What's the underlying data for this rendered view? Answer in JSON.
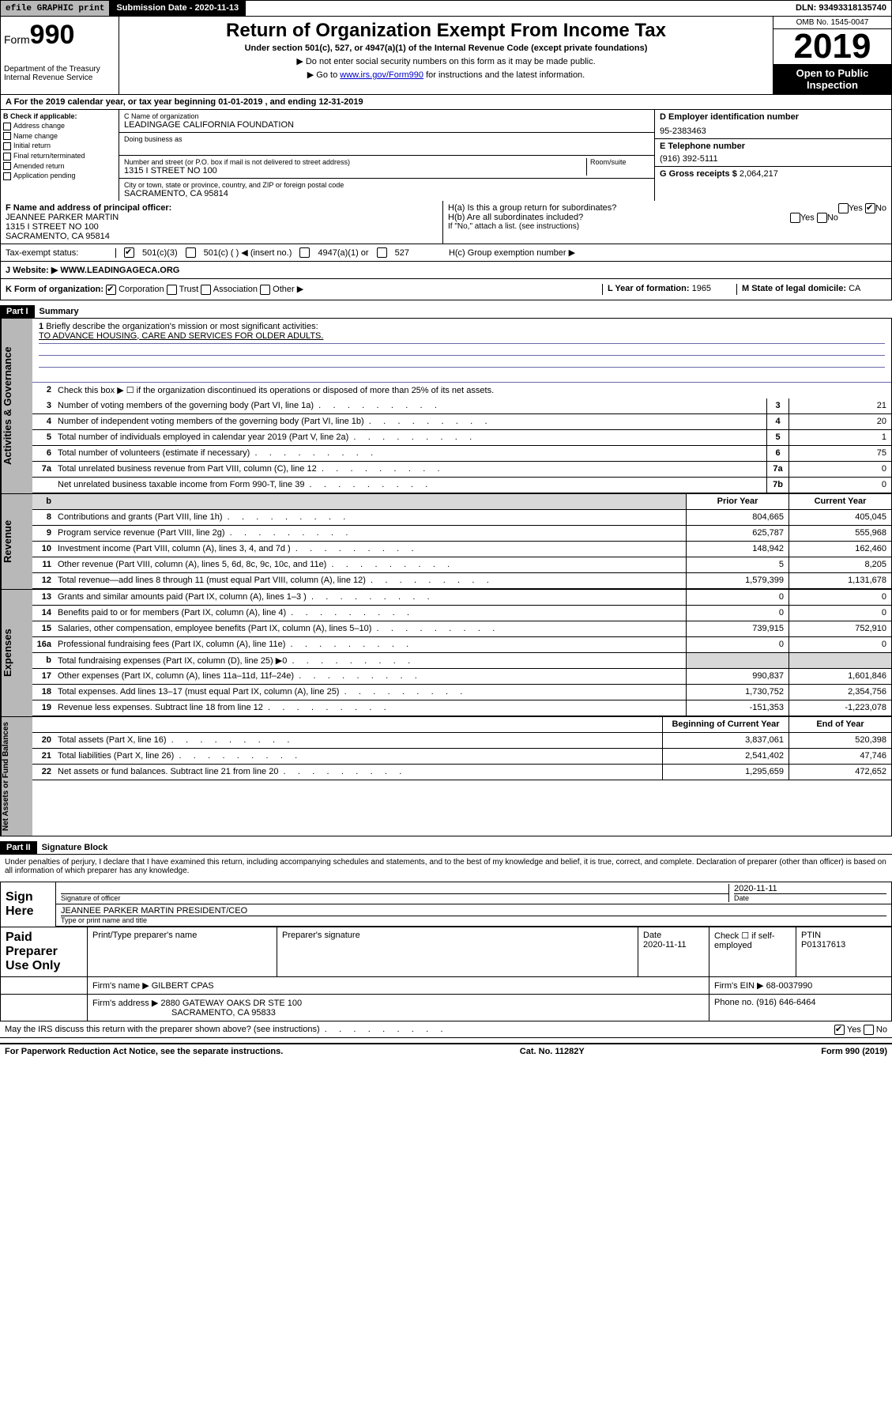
{
  "topbar": {
    "efile": "efile GRAPHIC print",
    "submission": "Submission Date - 2020-11-13",
    "dln": "DLN: 93493318135740"
  },
  "header": {
    "form": "Form",
    "formnum": "990",
    "title": "Return of Organization Exempt From Income Tax",
    "sub": "Under section 501(c), 527, or 4947(a)(1) of the Internal Revenue Code (except private foundations)",
    "note1": "▶ Do not enter social security numbers on this form as it may be made public.",
    "note2_pre": "▶ Go to ",
    "note2_link": "www.irs.gov/Form990",
    "note2_post": " for instructions and the latest information.",
    "dept": "Department of the Treasury\nInternal Revenue Service",
    "omb": "OMB No. 1545-0047",
    "year": "2019",
    "open": "Open to Public Inspection"
  },
  "period": "A For the 2019 calendar year, or tax year beginning 01-01-2019    , and ending 12-31-2019",
  "boxB": {
    "title": "B Check if applicable:",
    "items": [
      "Address change",
      "Name change",
      "Initial return",
      "Final return/terminated",
      "Amended return",
      "Application pending"
    ]
  },
  "boxC": {
    "name_lbl": "C Name of organization",
    "name": "LEADINGAGE CALIFORNIA FOUNDATION",
    "dba_lbl": "Doing business as",
    "addr_lbl": "Number and street (or P.O. box if mail is not delivered to street address)",
    "room_lbl": "Room/suite",
    "addr": "1315 I STREET NO 100",
    "city_lbl": "City or town, state or province, country, and ZIP or foreign postal code",
    "city": "SACRAMENTO, CA  95814"
  },
  "boxD": {
    "lbl": "D Employer identification number",
    "val": "95-2383463"
  },
  "boxE": {
    "lbl": "E Telephone number",
    "val": "(916) 392-5111"
  },
  "boxG": {
    "lbl": "G Gross receipts $",
    "val": "2,064,217"
  },
  "boxF": {
    "lbl": "F  Name and address of principal officer:",
    "name": "JEANNEE PARKER MARTIN",
    "addr1": "1315 I STREET NO 100",
    "addr2": "SACRAMENTO, CA  95814"
  },
  "boxH": {
    "ha": "H(a)  Is this a group return for subordinates?",
    "hb": "H(b)  Are all subordinates included?",
    "hb_note": "If \"No,\" attach a list. (see instructions)",
    "hc": "H(c)  Group exemption number ▶"
  },
  "tax_status": "Tax-exempt status:",
  "tax_opts": [
    "501(c)(3)",
    "501(c) (  ) ◀ (insert no.)",
    "4947(a)(1) or",
    "527"
  ],
  "websiteJ": {
    "lbl": "J   Website: ▶",
    "val": "WWW.LEADINGAGECA.ORG"
  },
  "boxK": {
    "lbl": "K Form of organization:",
    "opts": [
      "Corporation",
      "Trust",
      "Association",
      "Other ▶"
    ]
  },
  "boxL": {
    "lbl": "L Year of formation:",
    "val": "1965"
  },
  "boxM": {
    "lbl": "M State of legal domicile:",
    "val": "CA"
  },
  "part1": {
    "bar": "Part I",
    "title": "Summary"
  },
  "summary": {
    "q1": "Briefly describe the organization's mission or most significant activities:",
    "mission": "TO ADVANCE HOUSING, CARE AND SERVICES FOR OLDER ADULTS.",
    "q2": "Check this box ▶ ☐  if the organization discontinued its operations or disposed of more than 25% of its net assets.",
    "rows_gov": [
      {
        "n": "3",
        "d": "Number of voting members of the governing body (Part VI, line 1a)",
        "b": "3",
        "v": "21"
      },
      {
        "n": "4",
        "d": "Number of independent voting members of the governing body (Part VI, line 1b)",
        "b": "4",
        "v": "20"
      },
      {
        "n": "5",
        "d": "Total number of individuals employed in calendar year 2019 (Part V, line 2a)",
        "b": "5",
        "v": "1"
      },
      {
        "n": "6",
        "d": "Total number of volunteers (estimate if necessary)",
        "b": "6",
        "v": "75"
      },
      {
        "n": "7a",
        "d": "Total unrelated business revenue from Part VIII, column (C), line 12",
        "b": "7a",
        "v": "0"
      },
      {
        "n": "",
        "d": "Net unrelated business taxable income from Form 990-T, line 39",
        "b": "7b",
        "v": "0"
      }
    ],
    "hdr_prior": "Prior Year",
    "hdr_curr": "Current Year",
    "rows_rev": [
      {
        "n": "8",
        "d": "Contributions and grants (Part VIII, line 1h)",
        "p": "804,665",
        "c": "405,045"
      },
      {
        "n": "9",
        "d": "Program service revenue (Part VIII, line 2g)",
        "p": "625,787",
        "c": "555,968"
      },
      {
        "n": "10",
        "d": "Investment income (Part VIII, column (A), lines 3, 4, and 7d )",
        "p": "148,942",
        "c": "162,460"
      },
      {
        "n": "11",
        "d": "Other revenue (Part VIII, column (A), lines 5, 6d, 8c, 9c, 10c, and 11e)",
        "p": "5",
        "c": "8,205"
      },
      {
        "n": "12",
        "d": "Total revenue—add lines 8 through 11 (must equal Part VIII, column (A), line 12)",
        "p": "1,579,399",
        "c": "1,131,678"
      }
    ],
    "rows_exp": [
      {
        "n": "13",
        "d": "Grants and similar amounts paid (Part IX, column (A), lines 1–3 )",
        "p": "0",
        "c": "0"
      },
      {
        "n": "14",
        "d": "Benefits paid to or for members (Part IX, column (A), line 4)",
        "p": "0",
        "c": "0"
      },
      {
        "n": "15",
        "d": "Salaries, other compensation, employee benefits (Part IX, column (A), lines 5–10)",
        "p": "739,915",
        "c": "752,910"
      },
      {
        "n": "16a",
        "d": "Professional fundraising fees (Part IX, column (A), line 11e)",
        "p": "0",
        "c": "0"
      },
      {
        "n": "b",
        "d": "Total fundraising expenses (Part IX, column (D), line 25) ▶0",
        "p": "",
        "c": "",
        "grey": true
      },
      {
        "n": "17",
        "d": "Other expenses (Part IX, column (A), lines 11a–11d, 11f–24e)",
        "p": "990,837",
        "c": "1,601,846"
      },
      {
        "n": "18",
        "d": "Total expenses. Add lines 13–17 (must equal Part IX, column (A), line 25)",
        "p": "1,730,752",
        "c": "2,354,756"
      },
      {
        "n": "19",
        "d": "Revenue less expenses. Subtract line 18 from line 12",
        "p": "-151,353",
        "c": "-1,223,078"
      }
    ],
    "hdr_beg": "Beginning of Current Year",
    "hdr_end": "End of Year",
    "rows_net": [
      {
        "n": "20",
        "d": "Total assets (Part X, line 16)",
        "p": "3,837,061",
        "c": "520,398"
      },
      {
        "n": "21",
        "d": "Total liabilities (Part X, line 26)",
        "p": "2,541,402",
        "c": "47,746"
      },
      {
        "n": "22",
        "d": "Net assets or fund balances. Subtract line 21 from line 20",
        "p": "1,295,659",
        "c": "472,652"
      }
    ]
  },
  "part2": {
    "bar": "Part II",
    "title": "Signature Block"
  },
  "sig": {
    "decl": "Under penalties of perjury, I declare that I have examined this return, including accompanying schedules and statements, and to the best of my knowledge and belief, it is true, correct, and complete. Declaration of preparer (other than officer) is based on all information of which preparer has any knowledge.",
    "sign_here": "Sign Here",
    "sig_officer": "Signature of officer",
    "date": "2020-11-11",
    "date_lbl": "Date",
    "officer_name": "JEANNEE PARKER MARTIN  PRESIDENT/CEO",
    "type_name": "Type or print name and title"
  },
  "paid": {
    "lbl": "Paid Preparer Use Only",
    "h1": "Print/Type preparer's name",
    "h2": "Preparer's signature",
    "h3": "Date",
    "h3v": "2020-11-11",
    "h4": "Check ☐ if self-employed",
    "h5": "PTIN",
    "h5v": "P01317613",
    "firm_lbl": "Firm's name    ▶",
    "firm": "GILBERT CPAS",
    "ein_lbl": "Firm's EIN ▶",
    "ein": "68-0037990",
    "addr_lbl": "Firm's address ▶",
    "addr": "2880 GATEWAY OAKS DR STE 100",
    "addr2": "SACRAMENTO, CA  95833",
    "phone_lbl": "Phone no.",
    "phone": "(916) 646-6464"
  },
  "discuss": "May the IRS discuss this return with the preparer shown above? (see instructions)",
  "footer": {
    "pra": "For Paperwork Reduction Act Notice, see the separate instructions.",
    "cat": "Cat. No. 11282Y",
    "form": "Form 990 (2019)"
  },
  "vlabels": {
    "gov": "Activities & Governance",
    "rev": "Revenue",
    "exp": "Expenses",
    "net": "Net Assets or Fund Balances"
  }
}
